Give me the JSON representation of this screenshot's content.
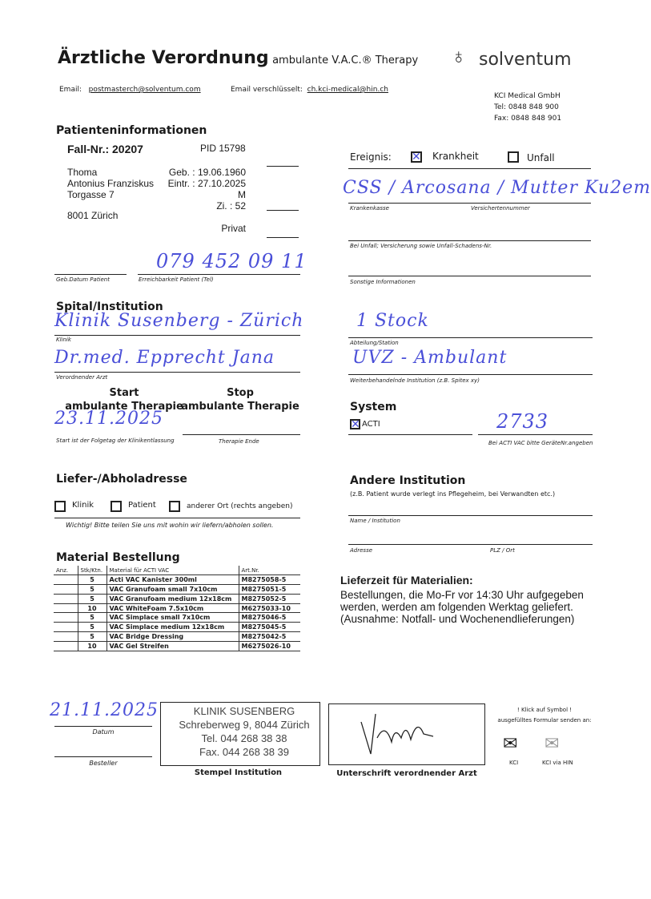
{
  "header": {
    "title": "Ärztliche Verordnung",
    "subtitle": "ambulante V.A.C.® Therapy",
    "brand": "solventum",
    "email_label": "Email:",
    "email": "postmasterch@solventum.com",
    "email_enc_label": "Email verschlüsselt:",
    "email_enc": "ch.kci-medical@hin.ch",
    "company": "KCI Medical GmbH",
    "tel": "Tel: 0848 848 900",
    "fax": "Fax: 0848 848 901"
  },
  "patient": {
    "heading": "Patienteninformationen",
    "case": "Fall-Nr.: 20207",
    "pid": "PID 15798",
    "last_name": "Thoma",
    "first_names": "Antonius Franziskus",
    "street": "Torgasse 7",
    "city": "8001 Zürich",
    "birth": "Geb. : 19.06.1960",
    "entry": "Eintr. : 27.10.2025",
    "sex": "M",
    "room": "Zi. : 52",
    "class": "Privat",
    "phone": "079 452 09 11",
    "birth_label": "Geb.Datum Patient",
    "phone_label": "Erreichbarkeit Patient (Tel)"
  },
  "event": {
    "label": "Ereignis:",
    "illness": "Krankheit",
    "illness_checked": true,
    "accident": "Unfall",
    "accident_checked": false,
    "insurance": "CSS / Arcosana / Mutter Ku2em",
    "insurance_label": "Krankenkasse",
    "insured_no_label": "Versichertennummer",
    "accident_label": "Bei Unfall; Versicherung sowie Unfall-Schadens-Nr.",
    "other_label": "Sonstige Informationen"
  },
  "institution": {
    "heading": "Spital/Institution",
    "clinic": "Klinik Susenberg - Zürich",
    "clinic_label": "Klinik",
    "ward": "1 Stock",
    "ward_label": "Abteilung/Station",
    "doctor": "Dr.med. Epprecht Jana",
    "doctor_label": "Verordnender Arzt",
    "followup": "UVZ - Ambulant",
    "followup_label": "Weiterbehandelnde Institution (z.B. Spitex xy)"
  },
  "therapy": {
    "start_title": "Start",
    "start_sub": "ambulante Therapie",
    "stop_title": "Stop",
    "stop_sub": "ambulante Therapie",
    "start_date": "23.11.2025",
    "start_label": "Start ist der Folgetag der Klinikentlassung",
    "end_label": "Therapie Ende"
  },
  "system": {
    "heading": "System",
    "option": "ACTI",
    "checked": true,
    "device_no": "2733",
    "device_label": "Bei ACTI VAC bitte GeräteNr.angeben"
  },
  "delivery": {
    "heading": "Liefer-/Abholadresse",
    "options": [
      "Klinik",
      "Patient",
      "anderer Ort  (rechts angeben)"
    ],
    "note": "Wichtig! Bitte teilen Sie uns mit wohin wir liefern/abholen sollen."
  },
  "other_institution": {
    "heading": "Andere Institution",
    "note": "(z.B. Patient wurde verlegt ins Pflegeheim, bei Verwandten etc.)",
    "name_label": "Name / Institution",
    "address_label": "Adresse",
    "zip_label": "PLZ / Ort"
  },
  "material": {
    "heading": "Material Bestellung",
    "columns": [
      "Anz.",
      "Stk/Ktn.",
      "Material für ACTI VAC",
      "Art.Nr."
    ],
    "rows": [
      [
        "",
        "5",
        "Acti VAC Kanister 300ml",
        "M8275058-5"
      ],
      [
        "",
        "5",
        "VAC Granufoam small 7x10cm",
        "M8275051-5"
      ],
      [
        "",
        "5",
        "VAC Granufoam medium 12x18cm",
        "M8275052-5"
      ],
      [
        "",
        "10",
        "VAC WhiteFoam 7.5x10cm",
        "M6275033-10"
      ],
      [
        "",
        "5",
        "VAC Simplace small 7x10cm",
        "M8275046-5"
      ],
      [
        "",
        "5",
        "VAC Simplace medium 12x18cm",
        "M8275045-5"
      ],
      [
        "",
        "5",
        "VAC Bridge Dressing",
        "M8275042-5"
      ],
      [
        "",
        "10",
        "VAC Gel Streifen",
        "M6275026-10"
      ]
    ]
  },
  "delivery_time": {
    "heading": "Lieferzeit für Materialien:",
    "lines": [
      "Bestellungen, die Mo-Fr vor 14:30 Uhr aufgegeben",
      "werden, werden am folgenden Werktag geliefert.",
      "(Ausnahme: Notfall- und Wochenendlieferungen)"
    ]
  },
  "footer": {
    "date": "21.11.2025",
    "date_label": "Datum",
    "orderer_label": "Besteller",
    "stamp": [
      "KLINIK SUSENBERG",
      "Schreberweg 9, 8044 Zürich",
      "Tel.  044 268 38 38",
      "Fax. 044 268 38 39"
    ],
    "stamp_label": "Stempel Institution",
    "signature_label": "Unterschrift verordnender Arzt",
    "send_hint1": "! Klick auf Symbol !",
    "send_hint2": "ausgefülltes Formular senden an:",
    "kci": "KCI",
    "kci_hin": "KCI via HIN"
  }
}
